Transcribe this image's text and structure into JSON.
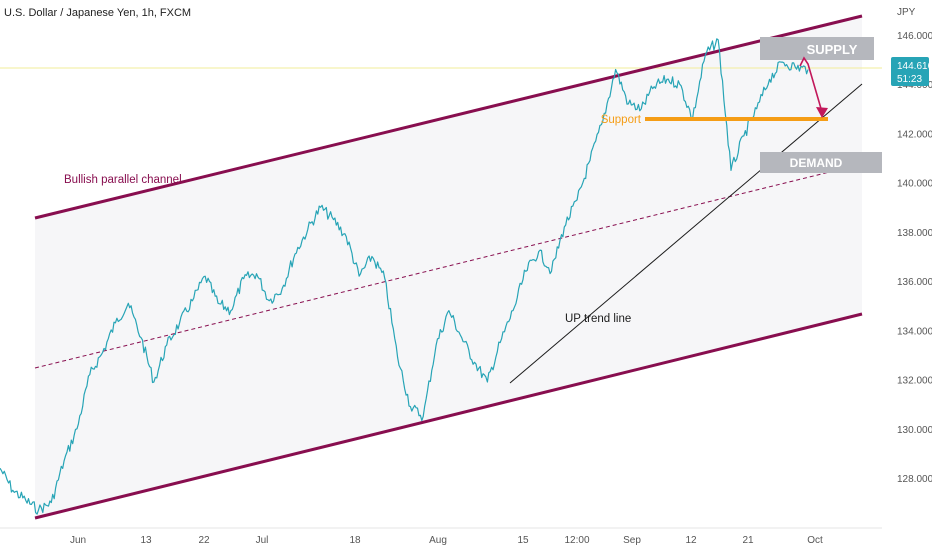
{
  "chart_data": {
    "type": "line",
    "title": "U.S. Dollar / Japanese Yen, 1h, FXCM",
    "currency": "JPY",
    "x_labels": [
      "Jun",
      "13",
      "22",
      "Jul",
      "18",
      "Aug",
      "15",
      "12:00",
      "Sep",
      "12",
      "21",
      "Oct"
    ],
    "y_ticks": [
      146.0,
      144.0,
      142.0,
      140.0,
      138.0,
      136.0,
      134.0,
      132.0,
      130.0,
      128.0
    ],
    "y_tick_labels": [
      "146.000",
      "144.000",
      "142.000",
      "140.000",
      "138.000",
      "136.000",
      "134.000",
      "132.000",
      "130.000",
      "128.000"
    ],
    "ylim": [
      126.3,
      147.4
    ],
    "grid": false,
    "series": [
      {
        "color": "#27a4b6",
        "x": [
          0,
          2,
          4,
          6,
          8,
          10,
          12,
          14,
          16,
          18,
          20,
          22,
          24,
          26,
          28,
          30,
          32,
          34,
          36,
          38,
          40,
          42,
          44,
          46,
          48,
          50,
          52,
          54,
          56,
          58,
          60,
          62,
          64,
          66,
          68,
          70,
          72,
          74,
          76,
          78,
          80,
          82,
          84,
          86,
          88,
          90,
          92,
          94,
          96,
          98,
          100,
          102,
          104,
          106,
          108,
          110,
          112,
          114,
          116,
          118,
          120,
          122,
          124,
          126
        ],
        "y": [
          128.4,
          127.5,
          127.1,
          126.7,
          127.0,
          128.7,
          130.0,
          132.2,
          133.1,
          134.3,
          135.1,
          133.7,
          131.9,
          133.4,
          134.3,
          135.2,
          136.2,
          135.1,
          134.8,
          136.1,
          136.3,
          135.2,
          135.7,
          137.1,
          138.1,
          139.0,
          138.5,
          137.8,
          136.2,
          137.0,
          136.1,
          132.9,
          130.9,
          130.5,
          133.4,
          134.8,
          133.7,
          132.7,
          131.9,
          133.5,
          134.8,
          136.4,
          137.2,
          136.4,
          138.2,
          139.3,
          140.9,
          142.5,
          144.6,
          143.2,
          143.0,
          143.9,
          144.2,
          144.0,
          142.6,
          145.2,
          145.8,
          140.5,
          141.9,
          143.0,
          144.2,
          144.9,
          144.7,
          144.6
        ]
      }
    ],
    "last_price": "144.616",
    "countdown": "51:23",
    "annotations": {
      "supply": "SUPPLY",
      "demand": "DEMAND",
      "support": "Support",
      "channel": "Bullish parallel channel",
      "trend": "UP trend line"
    },
    "colors": {
      "price": "#27a4b6",
      "channel": "#880e4f",
      "support": "#f59d16",
      "zone": "#b5b7bd",
      "trendline": "#1b1b1b",
      "last_price_bg": "#27a4b6"
    }
  }
}
